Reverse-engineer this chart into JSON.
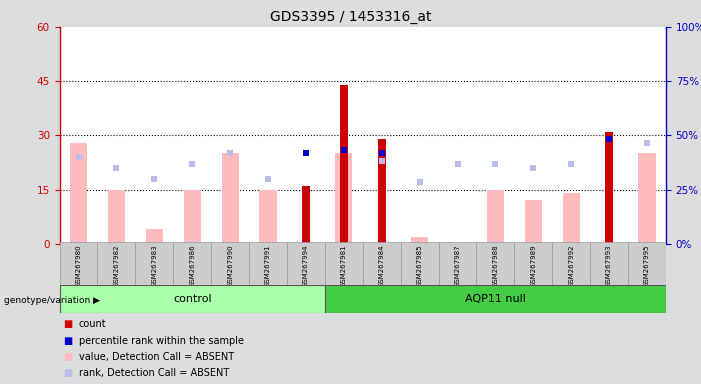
{
  "title": "GDS3395 / 1453316_at",
  "samples": [
    "GSM267980",
    "GSM267982",
    "GSM267983",
    "GSM267986",
    "GSM267990",
    "GSM267991",
    "GSM267994",
    "GSM267981",
    "GSM267984",
    "GSM267985",
    "GSM267987",
    "GSM267988",
    "GSM267989",
    "GSM267992",
    "GSM267993",
    "GSM267995"
  ],
  "groups": [
    "control",
    "control",
    "control",
    "control",
    "control",
    "control",
    "control",
    "AQP11 null",
    "AQP11 null",
    "AQP11 null",
    "AQP11 null",
    "AQP11 null",
    "AQP11 null",
    "AQP11 null",
    "AQP11 null",
    "AQP11 null"
  ],
  "count": [
    0,
    0,
    0,
    0,
    0,
    0,
    16,
    44,
    29,
    0,
    0,
    0,
    0,
    0,
    31,
    0
  ],
  "percentile_rank": [
    0,
    0,
    0,
    0,
    0,
    0,
    25,
    26,
    25,
    0,
    0,
    0,
    0,
    0,
    29,
    0
  ],
  "value_absent": [
    28,
    15,
    4,
    15,
    25,
    15,
    0,
    25,
    0,
    2,
    0,
    15,
    12,
    14,
    0,
    25
  ],
  "rank_absent": [
    24,
    21,
    18,
    22,
    25,
    18,
    0,
    0,
    23,
    17,
    22,
    22,
    21,
    22,
    0,
    28
  ],
  "ylim_left": [
    0,
    60
  ],
  "ylim_right": [
    0,
    100
  ],
  "yticks_left": [
    0,
    15,
    30,
    45,
    60
  ],
  "yticks_right": [
    0,
    25,
    50,
    75,
    100
  ],
  "color_count": "#cc0000",
  "color_rank": "#0000cc",
  "color_value_absent": "#ffbbbb",
  "color_rank_absent": "#bbbbee",
  "color_group_control": "#aaffaa",
  "color_group_aqp11": "#44cc44",
  "bg_color": "#dddddd",
  "plot_bg": "#ffffff",
  "n_control": 7,
  "n_aqp11": 9
}
